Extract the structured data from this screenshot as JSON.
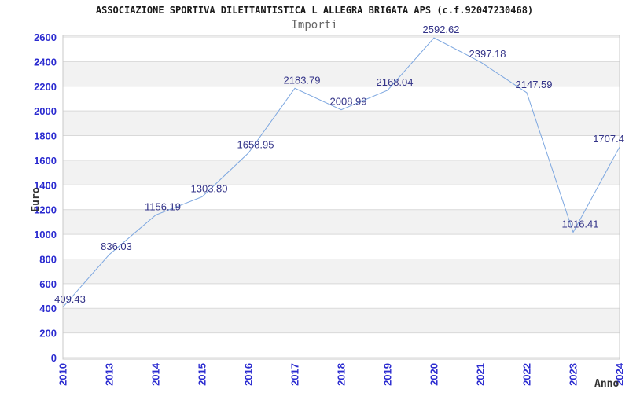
{
  "chart_data": {
    "type": "line",
    "title": "ASSOCIAZIONE SPORTIVA DILETTANTISTICA L ALLEGRA BRIGATA APS (c.f.92047230468)",
    "subtitle": "Importi",
    "xlabel": "Anno",
    "ylabel": "Euro",
    "categories": [
      "2010",
      "2013",
      "2014",
      "2015",
      "2016",
      "2017",
      "2018",
      "2019",
      "2020",
      "2021",
      "2022",
      "2023",
      "2024"
    ],
    "values": [
      409.43,
      836.03,
      1156.19,
      1303.8,
      1658.95,
      2183.79,
      2008.99,
      2168.04,
      2592.62,
      2397.18,
      2147.59,
      1016.41,
      1707.4
    ],
    "point_labels": [
      "409.43",
      "836.03",
      "1156.19",
      "1303.80",
      "1658.95",
      "2183.79",
      "2008.99",
      "2168.04",
      "2592.62",
      "2397.18",
      "2147.59",
      "1016.41",
      "1707.4"
    ],
    "ylim": [
      0,
      2600
    ],
    "ytick_step": 200,
    "grid": true,
    "alternating_bands": true,
    "legend_position": "none",
    "point_markers": false
  },
  "colors": {
    "line": "#7da7e0",
    "tick_label": "#2b2bd0",
    "point_label": "#333388",
    "band": "#f2f2f2",
    "gridline": "#d9d9d9",
    "plot_border": "#c8c8c8",
    "title_text": "#1a1a1a",
    "subtitle_text": "#666666",
    "axis_title_text": "#333333",
    "background": "#ffffff"
  }
}
